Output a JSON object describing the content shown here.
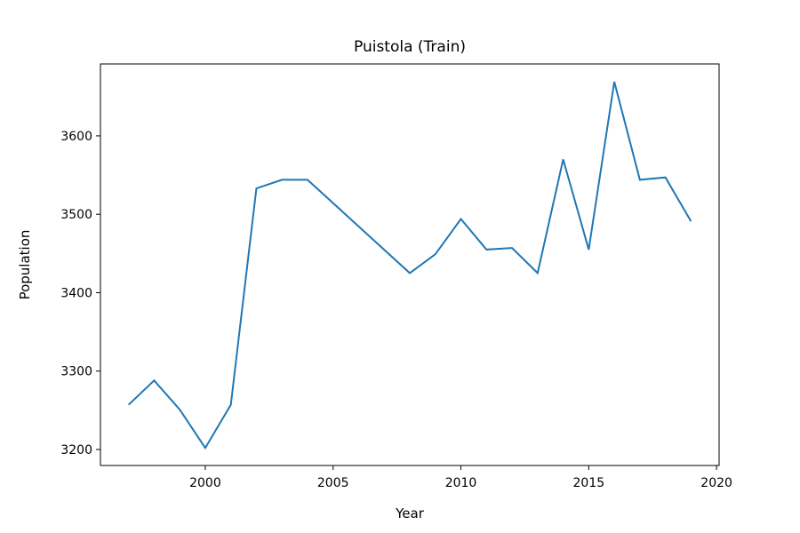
{
  "chart_data": {
    "type": "line",
    "title": "Puistola (Train)",
    "x_label": "Year",
    "y_label": "Population",
    "x": [
      1997,
      1998,
      1999,
      2000,
      2001,
      2002,
      2003,
      2004,
      2008,
      2009,
      2010,
      2011,
      2012,
      2013,
      2014,
      2015,
      2016,
      2017,
      2018,
      2019
    ],
    "series": [
      {
        "name": "Population",
        "color": "#1f77b4",
        "values": [
          3257,
          3288,
          3251,
          3202,
          3257,
          3533,
          3544,
          3544,
          3425,
          3449,
          3494,
          3455,
          3457,
          3425,
          3570,
          3455,
          3669,
          3544,
          3547,
          3491
        ]
      }
    ],
    "xlim": [
      1995.9,
      2020.1
    ],
    "xticks": [
      2000,
      2005,
      2010,
      2015,
      2020
    ],
    "ylim": [
      3179.6,
      3691.7
    ],
    "yticks": [
      3200,
      3300,
      3400,
      3500,
      3600
    ],
    "grid": false
  }
}
